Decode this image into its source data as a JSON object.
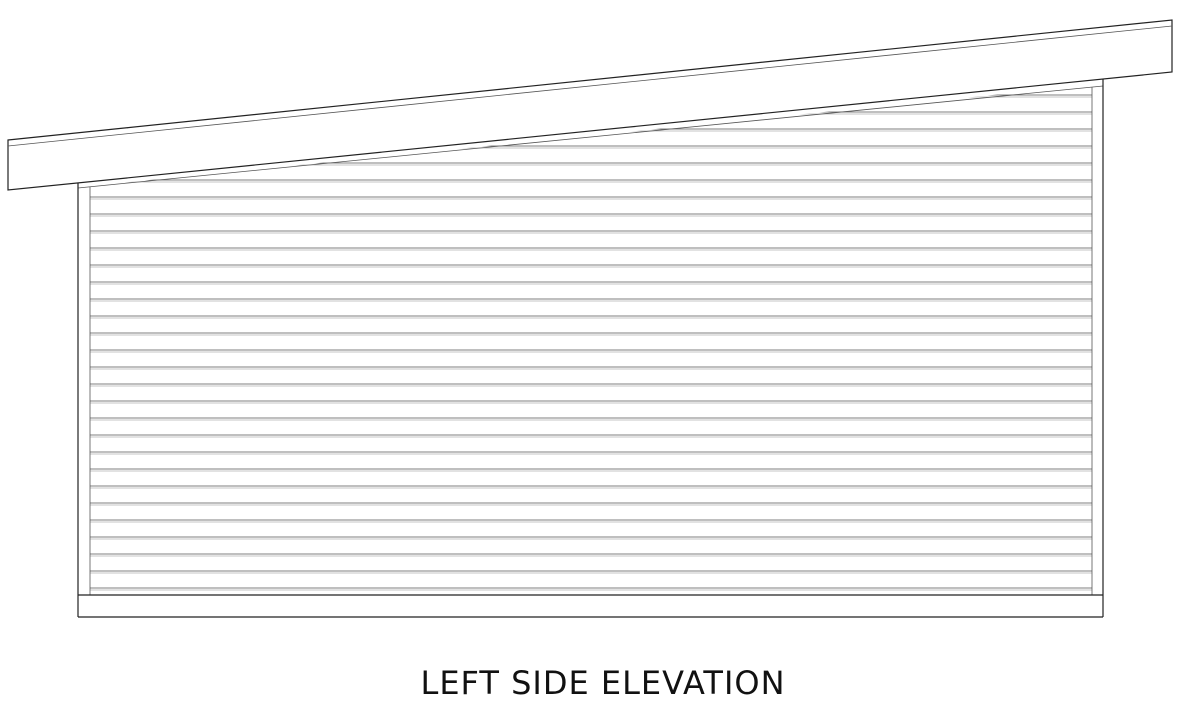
{
  "drawing": {
    "caption": "LEFT SIDE ELEVATION"
  }
}
